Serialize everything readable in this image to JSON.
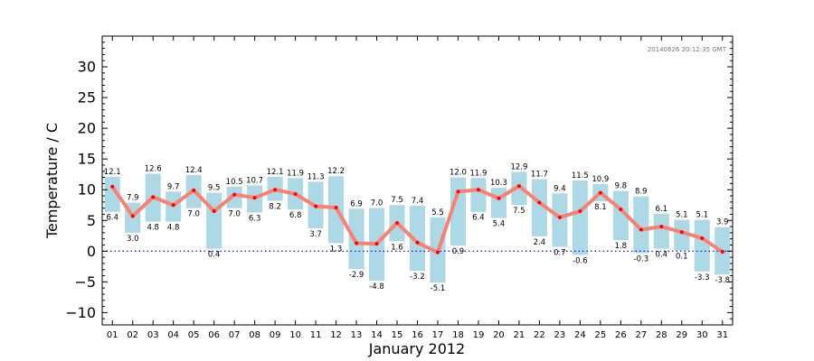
{
  "chart_data": {
    "type": "bar",
    "xlabel": "January 2012",
    "ylabel": "Temperature / C",
    "timestamp": "20140626 20:12:35 GMT",
    "xlim": [
      0.5,
      31.5
    ],
    "ylim": [
      -12,
      35
    ],
    "yticks": [
      "−10",
      "−5",
      "0",
      "5",
      "10",
      "15",
      "20",
      "25",
      "30"
    ],
    "ytick_values": [
      -10,
      -5,
      0,
      5,
      10,
      15,
      20,
      25,
      30
    ],
    "categories": [
      "01",
      "02",
      "03",
      "04",
      "05",
      "06",
      "07",
      "08",
      "09",
      "10",
      "11",
      "12",
      "13",
      "14",
      "15",
      "16",
      "17",
      "18",
      "19",
      "20",
      "21",
      "22",
      "23",
      "24",
      "25",
      "26",
      "27",
      "28",
      "29",
      "30",
      "31"
    ],
    "series": [
      {
        "kind": "range-bar",
        "color": "#add8e6",
        "max": [
          12.1,
          7.9,
          12.6,
          9.7,
          12.4,
          9.5,
          10.5,
          10.7,
          12.1,
          11.9,
          11.3,
          12.2,
          6.9,
          7.0,
          7.5,
          7.4,
          5.5,
          12.0,
          11.9,
          10.3,
          12.9,
          11.7,
          9.4,
          11.5,
          10.9,
          9.8,
          8.9,
          6.1,
          5.1,
          5.1,
          3.9
        ],
        "min": [
          6.4,
          3.0,
          4.8,
          4.8,
          7.0,
          0.4,
          7.0,
          6.3,
          8.2,
          6.8,
          3.7,
          1.3,
          -2.9,
          -4.8,
          1.6,
          -3.2,
          -5.1,
          0.9,
          6.4,
          5.4,
          7.5,
          2.4,
          0.7,
          -0.6,
          8.1,
          1.8,
          -0.3,
          0.4,
          0.1,
          -3.3,
          -3.8
        ],
        "max_labels": [
          "12.1",
          "7.9",
          "12.6",
          "9.7",
          "12.4",
          "9.5",
          "10.5",
          "10.7",
          "12.1",
          "11.9",
          "11.3",
          "12.2",
          "6.9",
          "7.0",
          "7.5",
          "7.4",
          "5.5",
          "12.0",
          "11.9",
          "10.3",
          "12.9",
          "11.7",
          "9.4",
          "11.5",
          "10.9",
          "9.8",
          "8.9",
          "6.1",
          "5.1",
          "5.1",
          "3.9"
        ],
        "min_labels": [
          "6.4",
          "3.0",
          "4.8",
          "4.8",
          "7.0",
          "0.4",
          "7.0",
          "6.3",
          "8.2",
          "6.8",
          "3.7",
          "1.3",
          "-2.9",
          "-4.8",
          "1.6",
          "-3.2",
          "-5.1",
          "0.9",
          "6.4",
          "5.4",
          "7.5",
          "2.4",
          "0.7",
          "-0.6",
          "8.1",
          "1.8",
          "-0.3",
          "0.4",
          "0.1",
          "-3.3",
          "-3.8"
        ]
      },
      {
        "kind": "line",
        "color": "#fa8072",
        "marker_color": "#ff0000",
        "values": [
          10.5,
          5.7,
          8.8,
          7.5,
          9.9,
          6.5,
          9.2,
          8.7,
          10.0,
          9.3,
          7.3,
          7.1,
          1.3,
          1.2,
          4.6,
          1.4,
          -0.2,
          9.7,
          10.0,
          8.6,
          10.6,
          7.9,
          5.5,
          6.5,
          9.5,
          6.8,
          3.5,
          4.0,
          3.1,
          2.1,
          -0.1
        ]
      }
    ],
    "reference_line": {
      "y": 0,
      "style": "dotted",
      "color": "#0000cc"
    },
    "grid": false
  }
}
